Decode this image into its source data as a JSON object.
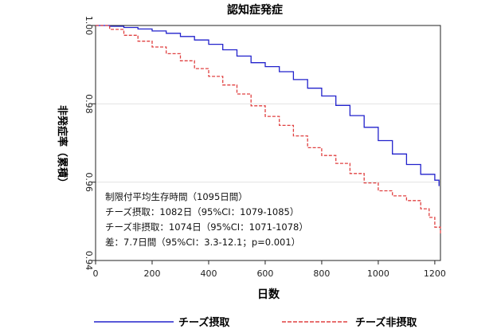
{
  "chart_data": {
    "type": "line",
    "title": "認知症発症",
    "xlabel": "日数",
    "ylabel": "非発症率（累積）",
    "xlim": [
      0,
      1220
    ],
    "ylim": [
      0.94,
      1.0
    ],
    "x_ticks": [
      "0",
      "200",
      "400",
      "600",
      "800",
      "1000",
      "1200"
    ],
    "y_ticks": [
      "0.94",
      "0.96",
      "0.98",
      "1.00"
    ],
    "grid": "horizontal",
    "legend_position": "bottom",
    "annotations": [
      "制限付平均生存時間（1095日間）",
      "チーズ摂取：1082日（95%CI：1079-1085）",
      "チーズ非摂取：1074日（95%CI：1071-1078）",
      "差：7.7日間（95%CI：3.3-12.1；p=0.001）"
    ],
    "series": [
      {
        "name": "チーズ摂取",
        "color": "#2222cc",
        "style": "solid",
        "x": [
          0,
          50,
          100,
          150,
          200,
          250,
          300,
          350,
          400,
          450,
          500,
          550,
          600,
          650,
          700,
          750,
          800,
          850,
          900,
          950,
          1000,
          1050,
          1100,
          1150,
          1200,
          1215
        ],
        "y": [
          1.0,
          0.9998,
          0.9995,
          0.9991,
          0.9986,
          0.998,
          0.9972,
          0.9963,
          0.9952,
          0.9938,
          0.9922,
          0.9905,
          0.9895,
          0.9882,
          0.9862,
          0.984,
          0.982,
          0.9796,
          0.977,
          0.974,
          0.9706,
          0.9672,
          0.9645,
          0.962,
          0.9605,
          0.959
        ]
      },
      {
        "name": "チーズ非摂取",
        "color": "#e04040",
        "style": "dashed",
        "x": [
          0,
          50,
          100,
          150,
          200,
          250,
          300,
          350,
          400,
          450,
          500,
          550,
          600,
          650,
          700,
          750,
          800,
          850,
          900,
          950,
          1000,
          1050,
          1100,
          1150,
          1180,
          1200,
          1220
        ],
        "y": [
          1.0,
          0.999,
          0.9975,
          0.996,
          0.9945,
          0.9928,
          0.991,
          0.989,
          0.987,
          0.9848,
          0.9825,
          0.9795,
          0.9768,
          0.9745,
          0.9718,
          0.9688,
          0.9668,
          0.9648,
          0.9622,
          0.9598,
          0.9578,
          0.9565,
          0.9553,
          0.9532,
          0.951,
          0.9485,
          0.9465
        ]
      }
    ]
  }
}
